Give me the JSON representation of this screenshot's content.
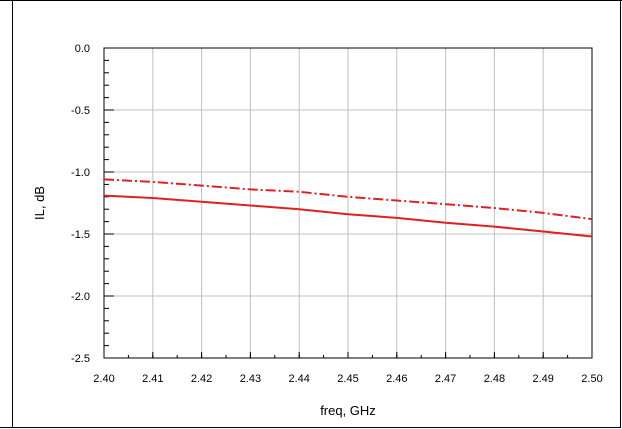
{
  "chart_data": {
    "type": "line",
    "title": "",
    "xlabel": "freq, GHz",
    "ylabel": "IL, dB",
    "xlim": [
      2.4,
      2.5
    ],
    "ylim": [
      -2.5,
      0.0
    ],
    "x_ticks": [
      "2.40",
      "2.41",
      "2.42",
      "2.43",
      "2.44",
      "2.45",
      "2.46",
      "2.47",
      "2.48",
      "2.49",
      "2.50"
    ],
    "y_ticks": [
      "0.0",
      "-0.5",
      "-1.0",
      "-1.5",
      "-2.0",
      "-2.5"
    ],
    "grid": true,
    "series": [
      {
        "style": "dashdot",
        "color": "#e02020",
        "x": [
          2.4,
          2.41,
          2.42,
          2.43,
          2.44,
          2.45,
          2.46,
          2.47,
          2.48,
          2.49,
          2.5
        ],
        "y": [
          -1.06,
          -1.08,
          -1.11,
          -1.14,
          -1.16,
          -1.2,
          -1.23,
          -1.26,
          -1.29,
          -1.33,
          -1.38
        ]
      },
      {
        "style": "solid",
        "color": "#e02020",
        "x": [
          2.4,
          2.41,
          2.42,
          2.43,
          2.44,
          2.45,
          2.46,
          2.47,
          2.48,
          2.49,
          2.5
        ],
        "y": [
          -1.19,
          -1.21,
          -1.24,
          -1.27,
          -1.3,
          -1.34,
          -1.37,
          -1.41,
          -1.44,
          -1.48,
          -1.52
        ]
      }
    ]
  }
}
